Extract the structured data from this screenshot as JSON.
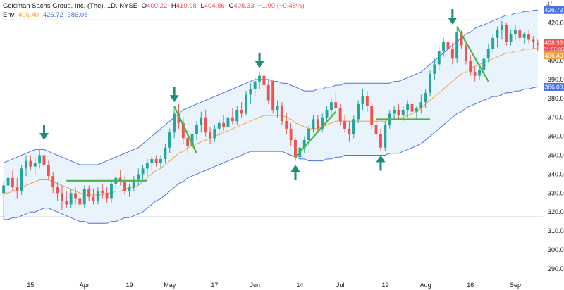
{
  "header": {
    "title": "Goldman Sachs Group, Inc. (The), 1D, NYSE",
    "ohlc": [
      {
        "label": "O",
        "value": "409.22"
      },
      {
        "label": "H",
        "value": "410.98"
      },
      {
        "label": "L",
        "value": "404.86"
      },
      {
        "label": "C",
        "value": "408.33"
      }
    ],
    "change": "−1.99 (−0.48%)",
    "indicator": {
      "name": "Env",
      "mid": "406.40",
      "upper": "426.72",
      "lower": "386.08"
    },
    "corner_label": "4("
  },
  "colors": {
    "up": "#26a69a",
    "down": "#ef5350",
    "band": "#4a72e8",
    "band_fill": "#e9f3fb",
    "mid": "#f2a23a",
    "pattern_line": "#47b547",
    "arrow": "#1e8c78",
    "text": "#131722",
    "axis_text": "#707070",
    "grid_line": "#d8dce6"
  },
  "chart_data": {
    "type": "candlestick",
    "symbol": "GS",
    "interval": "1D",
    "exchange": "NYSE",
    "ylim": [
      284,
      432
    ],
    "y_ticks": [
      290,
      300,
      310,
      320,
      330,
      340,
      350,
      360,
      370,
      380,
      390,
      400,
      410,
      420
    ],
    "x_ticks": [
      {
        "label": "15",
        "bar": 6
      },
      {
        "label": "Apr",
        "bar": 18
      },
      {
        "label": "19",
        "bar": 28
      },
      {
        "label": "May",
        "bar": 37
      },
      {
        "label": "17",
        "bar": 47
      },
      {
        "label": "Jun",
        "bar": 56
      },
      {
        "label": "14",
        "bar": 66
      },
      {
        "label": "Jul",
        "bar": 75
      },
      {
        "label": "19",
        "bar": 85
      },
      {
        "label": "Aug",
        "bar": 94
      },
      {
        "label": "16",
        "bar": 104
      },
      {
        "label": "Sep",
        "bar": 114
      }
    ],
    "horizontal_lines": [
      421.5,
      317.5
    ],
    "candles": [
      {
        "o": 330,
        "h": 336,
        "l": 316,
        "c": 334
      },
      {
        "o": 334,
        "h": 341,
        "l": 329,
        "c": 338
      },
      {
        "o": 338,
        "h": 342,
        "l": 331,
        "c": 333
      },
      {
        "o": 333,
        "h": 338,
        "l": 327,
        "c": 331
      },
      {
        "o": 331,
        "h": 345,
        "l": 329,
        "c": 343
      },
      {
        "o": 343,
        "h": 350,
        "l": 339,
        "c": 347
      },
      {
        "o": 347,
        "h": 350,
        "l": 342,
        "c": 344
      },
      {
        "o": 344,
        "h": 349,
        "l": 340,
        "c": 346
      },
      {
        "o": 346,
        "h": 353,
        "l": 343,
        "c": 350
      },
      {
        "o": 350,
        "h": 357,
        "l": 343,
        "c": 345
      },
      {
        "o": 345,
        "h": 347,
        "l": 337,
        "c": 339
      },
      {
        "o": 339,
        "h": 341,
        "l": 330,
        "c": 333
      },
      {
        "o": 333,
        "h": 336,
        "l": 326,
        "c": 330
      },
      {
        "o": 330,
        "h": 334,
        "l": 321,
        "c": 326
      },
      {
        "o": 326,
        "h": 331,
        "l": 322,
        "c": 324
      },
      {
        "o": 324,
        "h": 332,
        "l": 322,
        "c": 330
      },
      {
        "o": 330,
        "h": 333,
        "l": 324,
        "c": 327
      },
      {
        "o": 327,
        "h": 331,
        "l": 322,
        "c": 324
      },
      {
        "o": 324,
        "h": 334,
        "l": 322,
        "c": 332
      },
      {
        "o": 332,
        "h": 334,
        "l": 326,
        "c": 328
      },
      {
        "o": 328,
        "h": 332,
        "l": 324,
        "c": 326
      },
      {
        "o": 326,
        "h": 333,
        "l": 324,
        "c": 331
      },
      {
        "o": 331,
        "h": 335,
        "l": 327,
        "c": 330
      },
      {
        "o": 330,
        "h": 333,
        "l": 325,
        "c": 327
      },
      {
        "o": 327,
        "h": 337,
        "l": 325,
        "c": 335
      },
      {
        "o": 335,
        "h": 340,
        "l": 332,
        "c": 338
      },
      {
        "o": 338,
        "h": 342,
        "l": 334,
        "c": 336
      },
      {
        "o": 336,
        "h": 339,
        "l": 329,
        "c": 331
      },
      {
        "o": 331,
        "h": 335,
        "l": 328,
        "c": 333
      },
      {
        "o": 333,
        "h": 339,
        "l": 331,
        "c": 337
      },
      {
        "o": 337,
        "h": 343,
        "l": 334,
        "c": 340
      },
      {
        "o": 340,
        "h": 345,
        "l": 337,
        "c": 343
      },
      {
        "o": 343,
        "h": 348,
        "l": 339,
        "c": 346
      },
      {
        "o": 346,
        "h": 350,
        "l": 342,
        "c": 348
      },
      {
        "o": 348,
        "h": 350,
        "l": 344,
        "c": 346
      },
      {
        "o": 346,
        "h": 350,
        "l": 343,
        "c": 348
      },
      {
        "o": 348,
        "h": 356,
        "l": 346,
        "c": 354
      },
      {
        "o": 354,
        "h": 364,
        "l": 351,
        "c": 362
      },
      {
        "o": 362,
        "h": 375,
        "l": 359,
        "c": 372
      },
      {
        "o": 372,
        "h": 377,
        "l": 364,
        "c": 367
      },
      {
        "o": 367,
        "h": 370,
        "l": 356,
        "c": 359
      },
      {
        "o": 359,
        "h": 363,
        "l": 351,
        "c": 355
      },
      {
        "o": 355,
        "h": 363,
        "l": 353,
        "c": 361
      },
      {
        "o": 361,
        "h": 368,
        "l": 358,
        "c": 366
      },
      {
        "o": 366,
        "h": 373,
        "l": 362,
        "c": 370
      },
      {
        "o": 370,
        "h": 374,
        "l": 360,
        "c": 362
      },
      {
        "o": 362,
        "h": 365,
        "l": 356,
        "c": 359
      },
      {
        "o": 359,
        "h": 366,
        "l": 357,
        "c": 364
      },
      {
        "o": 364,
        "h": 369,
        "l": 360,
        "c": 367
      },
      {
        "o": 367,
        "h": 371,
        "l": 363,
        "c": 365
      },
      {
        "o": 365,
        "h": 372,
        "l": 363,
        "c": 370
      },
      {
        "o": 370,
        "h": 375,
        "l": 366,
        "c": 368
      },
      {
        "o": 368,
        "h": 376,
        "l": 366,
        "c": 374
      },
      {
        "o": 374,
        "h": 378,
        "l": 370,
        "c": 372
      },
      {
        "o": 372,
        "h": 384,
        "l": 371,
        "c": 382
      },
      {
        "o": 382,
        "h": 388,
        "l": 377,
        "c": 385
      },
      {
        "o": 385,
        "h": 391,
        "l": 381,
        "c": 389
      },
      {
        "o": 389,
        "h": 394,
        "l": 385,
        "c": 392
      },
      {
        "o": 392,
        "h": 393,
        "l": 385,
        "c": 387
      },
      {
        "o": 387,
        "h": 390,
        "l": 377,
        "c": 379
      },
      {
        "o": 389,
        "h": 390,
        "l": 372,
        "c": 374
      },
      {
        "o": 374,
        "h": 379,
        "l": 370,
        "c": 376
      },
      {
        "o": 376,
        "h": 378,
        "l": 366,
        "c": 368
      },
      {
        "o": 368,
        "h": 372,
        "l": 361,
        "c": 364
      },
      {
        "o": 364,
        "h": 367,
        "l": 355,
        "c": 358
      },
      {
        "o": 358,
        "h": 359,
        "l": 347,
        "c": 349
      },
      {
        "o": 349,
        "h": 356,
        "l": 348,
        "c": 354
      },
      {
        "o": 354,
        "h": 360,
        "l": 351,
        "c": 358
      },
      {
        "o": 358,
        "h": 366,
        "l": 355,
        "c": 364
      },
      {
        "o": 364,
        "h": 371,
        "l": 362,
        "c": 369
      },
      {
        "o": 369,
        "h": 371,
        "l": 362,
        "c": 364
      },
      {
        "o": 364,
        "h": 372,
        "l": 362,
        "c": 370
      },
      {
        "o": 370,
        "h": 376,
        "l": 367,
        "c": 374
      },
      {
        "o": 374,
        "h": 380,
        "l": 371,
        "c": 378
      },
      {
        "o": 378,
        "h": 383,
        "l": 373,
        "c": 375
      },
      {
        "o": 375,
        "h": 377,
        "l": 366,
        "c": 368
      },
      {
        "o": 368,
        "h": 371,
        "l": 362,
        "c": 364
      },
      {
        "o": 364,
        "h": 368,
        "l": 357,
        "c": 361
      },
      {
        "o": 361,
        "h": 371,
        "l": 359,
        "c": 369
      },
      {
        "o": 369,
        "h": 379,
        "l": 367,
        "c": 377
      },
      {
        "o": 377,
        "h": 385,
        "l": 374,
        "c": 381
      },
      {
        "o": 381,
        "h": 384,
        "l": 373,
        "c": 376
      },
      {
        "o": 376,
        "h": 378,
        "l": 364,
        "c": 366
      },
      {
        "o": 366,
        "h": 369,
        "l": 358,
        "c": 361
      },
      {
        "o": 361,
        "h": 364,
        "l": 352,
        "c": 354
      },
      {
        "o": 354,
        "h": 368,
        "l": 352,
        "c": 366
      },
      {
        "o": 366,
        "h": 374,
        "l": 364,
        "c": 372
      },
      {
        "o": 372,
        "h": 376,
        "l": 369,
        "c": 374
      },
      {
        "o": 374,
        "h": 377,
        "l": 369,
        "c": 371
      },
      {
        "o": 371,
        "h": 376,
        "l": 368,
        "c": 374
      },
      {
        "o": 374,
        "h": 379,
        "l": 370,
        "c": 377
      },
      {
        "o": 377,
        "h": 379,
        "l": 371,
        "c": 373
      },
      {
        "o": 373,
        "h": 376,
        "l": 369,
        "c": 375
      },
      {
        "o": 375,
        "h": 382,
        "l": 372,
        "c": 378
      },
      {
        "o": 378,
        "h": 385,
        "l": 375,
        "c": 383
      },
      {
        "o": 383,
        "h": 395,
        "l": 381,
        "c": 393
      },
      {
        "o": 393,
        "h": 401,
        "l": 390,
        "c": 398
      },
      {
        "o": 398,
        "h": 408,
        "l": 395,
        "c": 405
      },
      {
        "o": 405,
        "h": 412,
        "l": 402,
        "c": 410
      },
      {
        "o": 410,
        "h": 414,
        "l": 403,
        "c": 406
      },
      {
        "o": 406,
        "h": 410,
        "l": 398,
        "c": 401
      },
      {
        "o": 401,
        "h": 418,
        "l": 399,
        "c": 415
      },
      {
        "o": 415,
        "h": 416,
        "l": 406,
        "c": 408
      },
      {
        "o": 408,
        "h": 409,
        "l": 398,
        "c": 400
      },
      {
        "o": 400,
        "h": 403,
        "l": 392,
        "c": 394
      },
      {
        "o": 394,
        "h": 397,
        "l": 389,
        "c": 392
      },
      {
        "o": 392,
        "h": 397,
        "l": 390,
        "c": 395
      },
      {
        "o": 395,
        "h": 403,
        "l": 393,
        "c": 401
      },
      {
        "o": 401,
        "h": 409,
        "l": 399,
        "c": 406
      },
      {
        "o": 406,
        "h": 414,
        "l": 404,
        "c": 412
      },
      {
        "o": 412,
        "h": 418,
        "l": 407,
        "c": 416
      },
      {
        "o": 416,
        "h": 421,
        "l": 411,
        "c": 419
      },
      {
        "o": 419,
        "h": 420,
        "l": 408,
        "c": 410
      },
      {
        "o": 410,
        "h": 416,
        "l": 408,
        "c": 414
      },
      {
        "o": 414,
        "h": 419,
        "l": 411,
        "c": 416
      },
      {
        "o": 416,
        "h": 418,
        "l": 410,
        "c": 412
      },
      {
        "o": 412,
        "h": 415,
        "l": 409,
        "c": 414
      },
      {
        "o": 414,
        "h": 416,
        "l": 409,
        "c": 411
      },
      {
        "o": 411,
        "h": 413,
        "l": 406,
        "c": 410
      },
      {
        "o": 409.22,
        "h": 410.98,
        "l": 404.86,
        "c": 408.33
      }
    ],
    "envelope": {
      "label": "Env",
      "mid_offset_pct": 0,
      "upper": [
        346,
        347,
        348,
        349,
        350,
        351,
        352,
        353,
        353,
        353,
        352,
        351,
        350,
        349,
        348,
        347,
        346,
        345,
        345,
        345,
        345,
        345,
        346,
        347,
        348,
        349,
        350,
        351,
        352,
        353,
        354,
        356,
        358,
        360,
        362,
        364,
        366,
        368,
        370,
        372,
        374,
        375,
        376,
        377,
        378,
        379,
        380,
        381,
        382,
        383,
        384,
        385,
        386,
        387,
        388,
        389,
        390,
        390,
        390,
        390,
        389,
        389,
        388,
        388,
        387,
        386,
        385,
        384,
        384,
        384,
        385,
        385,
        386,
        386,
        387,
        387,
        388,
        388,
        388,
        388,
        388,
        388,
        388,
        388,
        388,
        388,
        388,
        389,
        389,
        390,
        391,
        392,
        393,
        394,
        396,
        398,
        400,
        402,
        404,
        406,
        408,
        410,
        412,
        414,
        415,
        417,
        418,
        419,
        420,
        421,
        422,
        423,
        424,
        424,
        425,
        425,
        426,
        426,
        426.5,
        426.72
      ],
      "mid": [
        330,
        330,
        331,
        332,
        333,
        334,
        335,
        336,
        337,
        337,
        337,
        336,
        335,
        334,
        333,
        332,
        331,
        330,
        329,
        329,
        329,
        329,
        329,
        330,
        330,
        331,
        331,
        332,
        333,
        333,
        334,
        336,
        338,
        340,
        342,
        343,
        345,
        347,
        349,
        351,
        352,
        354,
        355,
        356,
        357,
        358,
        359,
        360,
        361,
        362,
        363,
        364,
        365,
        366,
        367,
        368,
        369,
        370,
        371,
        371,
        371,
        371,
        371,
        370,
        369,
        367,
        366,
        365,
        364,
        364,
        364,
        365,
        366,
        367,
        368,
        368,
        368,
        368,
        368,
        368,
        368,
        368,
        368,
        368,
        368,
        368,
        369,
        369,
        369,
        370,
        371,
        372,
        373,
        375,
        377,
        379,
        381,
        383,
        385,
        387,
        389,
        391,
        393,
        394,
        396,
        397,
        398,
        399,
        400,
        401,
        402,
        403,
        404,
        404,
        405,
        405,
        406,
        406,
        406.3,
        406.4
      ],
      "lower": [
        316,
        316,
        317,
        317,
        318,
        319,
        320,
        320,
        321,
        322,
        322,
        321,
        320,
        319,
        318,
        317,
        316,
        315,
        315,
        314,
        314,
        314,
        314,
        314,
        315,
        315,
        316,
        317,
        317,
        318,
        319,
        320,
        322,
        324,
        326,
        327,
        329,
        331,
        333,
        335,
        336,
        338,
        339,
        340,
        341,
        342,
        343,
        344,
        345,
        346,
        347,
        348,
        349,
        350,
        351,
        352,
        352,
        352,
        352,
        352,
        352,
        352,
        352,
        351,
        350,
        349,
        348,
        348,
        347,
        347,
        347,
        347,
        348,
        348,
        349,
        349,
        350,
        350,
        350,
        350,
        350,
        350,
        350,
        350,
        350,
        350,
        351,
        351,
        351,
        352,
        353,
        354,
        355,
        356,
        358,
        360,
        362,
        364,
        366,
        368,
        370,
        372,
        373,
        375,
        376,
        377,
        378,
        379,
        380,
        381,
        381,
        382,
        383,
        383,
        384,
        384,
        385,
        385,
        385.7,
        386.08
      ]
    },
    "price_tags": [
      {
        "label": "426.72",
        "value": 426.72,
        "kind": "upper"
      },
      {
        "label": "408.33",
        "value": 408.33,
        "kind": "last"
      },
      {
        "label": "01:55:35",
        "value": 408.33,
        "kind": "countdown"
      },
      {
        "label": "406.40",
        "value": 406.4,
        "kind": "mid"
      },
      {
        "label": "386.08",
        "value": 386.08,
        "kind": "lower"
      }
    ],
    "annotations": {
      "lines": [
        {
          "from": {
            "bar": 14,
            "price": 336.5
          },
          "to": {
            "bar": 32,
            "price": 336.5
          }
        },
        {
          "from": {
            "bar": 38,
            "price": 376
          },
          "to": {
            "bar": 43,
            "price": 351
          }
        },
        {
          "from": {
            "bar": 65,
            "price": 349
          },
          "to": {
            "bar": 74,
            "price": 373
          }
        },
        {
          "from": {
            "bar": 83,
            "price": 369
          },
          "to": {
            "bar": 95,
            "price": 369
          }
        },
        {
          "from": {
            "bar": 101,
            "price": 418
          },
          "to": {
            "bar": 108,
            "price": 389
          }
        }
      ],
      "arrows": [
        {
          "bar": 9,
          "price": 358,
          "direction": "down"
        },
        {
          "bar": 38,
          "price": 378,
          "direction": "down"
        },
        {
          "bar": 57,
          "price": 396,
          "direction": "down"
        },
        {
          "bar": 65,
          "price": 345,
          "direction": "up"
        },
        {
          "bar": 84,
          "price": 350,
          "direction": "up"
        },
        {
          "bar": 100,
          "price": 419,
          "direction": "down"
        }
      ]
    }
  }
}
